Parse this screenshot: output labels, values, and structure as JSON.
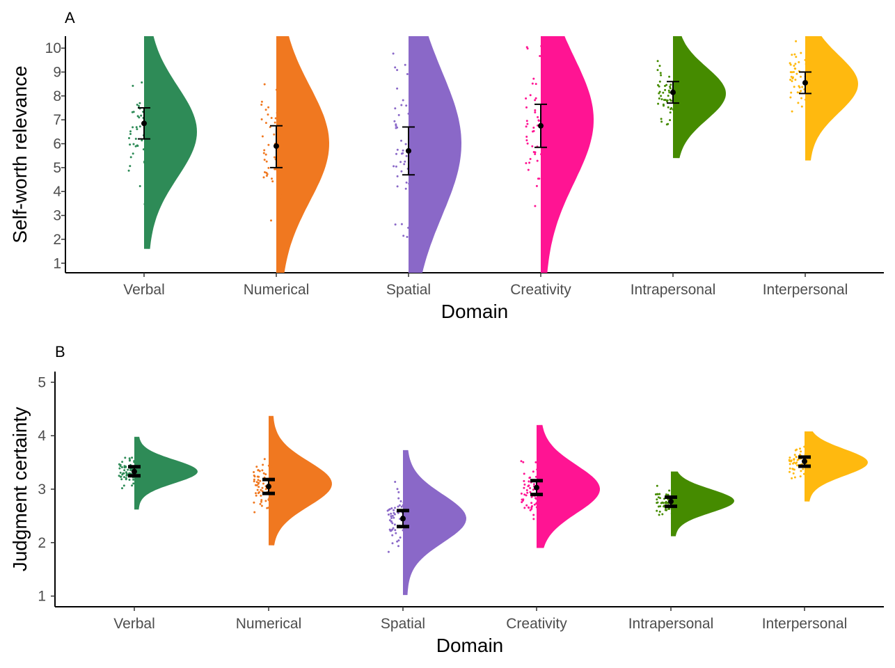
{
  "chart_data": [
    {
      "type": "raincloud",
      "panel_label": "A",
      "xlabel": "Domain",
      "ylabel": "Self-worth relevance",
      "ylim": [
        0.6,
        10.5
      ],
      "yticks": [
        1,
        2,
        3,
        4,
        5,
        6,
        7,
        8,
        9,
        10
      ],
      "categories": [
        "Verbal",
        "Numerical",
        "Spatial",
        "Creativity",
        "Intrapersonal",
        "Interpersonal"
      ],
      "colors": [
        "#2E8B57",
        "#F07820",
        "#8A68C8",
        "#FF1493",
        "#458B00",
        "#FFB90F"
      ],
      "series": [
        {
          "mean": 6.85,
          "ci": [
            6.2,
            7.5
          ],
          "range": [
            1.6,
            10.5
          ],
          "mode": 6.5,
          "spread": 1.9
        },
        {
          "mean": 5.9,
          "ci": [
            5.0,
            6.75
          ],
          "range": [
            0.6,
            10.5
          ],
          "mode": 6.0,
          "spread": 2.4
        },
        {
          "mean": 5.7,
          "ci": [
            4.7,
            6.7
          ],
          "range": [
            0.6,
            10.5
          ],
          "mode": 6.0,
          "spread": 3.0
        },
        {
          "mean": 6.75,
          "ci": [
            5.85,
            7.65
          ],
          "range": [
            0.6,
            10.5
          ],
          "mode": 7.0,
          "spread": 2.6
        },
        {
          "mean": 8.15,
          "ci": [
            7.7,
            8.6
          ],
          "range": [
            5.4,
            10.5
          ],
          "mode": 8.1,
          "spread": 1.1
        },
        {
          "mean": 8.55,
          "ci": [
            8.1,
            9.0
          ],
          "range": [
            5.3,
            10.5
          ],
          "mode": 8.5,
          "spread": 1.2
        }
      ]
    },
    {
      "type": "raincloud",
      "panel_label": "B",
      "xlabel": "Domain",
      "ylabel": "Judgment certainty",
      "ylim": [
        0.8,
        5.2
      ],
      "yticks": [
        1,
        2,
        3,
        4,
        5
      ],
      "categories": [
        "Verbal",
        "Numerical",
        "Spatial",
        "Creativity",
        "Intrapersonal",
        "Interpersonal"
      ],
      "colors": [
        "#2E8B57",
        "#F07820",
        "#8A68C8",
        "#FF1493",
        "#458B00",
        "#FFB90F"
      ],
      "series": [
        {
          "mean": 3.33,
          "ci": [
            3.25,
            3.42
          ],
          "range": [
            2.62,
            3.98
          ],
          "mode": 3.33,
          "spread": 0.22
        },
        {
          "mean": 3.05,
          "ci": [
            2.92,
            3.18
          ],
          "range": [
            1.95,
            4.37
          ],
          "mode": 3.1,
          "spread": 0.42
        },
        {
          "mean": 2.45,
          "ci": [
            2.3,
            2.6
          ],
          "range": [
            1.02,
            3.73
          ],
          "mode": 2.45,
          "spread": 0.45
        },
        {
          "mean": 3.03,
          "ci": [
            2.9,
            3.16
          ],
          "range": [
            1.9,
            4.2
          ],
          "mode": 3.0,
          "spread": 0.45
        },
        {
          "mean": 2.77,
          "ci": [
            2.68,
            2.85
          ],
          "range": [
            2.12,
            3.33
          ],
          "mode": 2.78,
          "spread": 0.22
        },
        {
          "mean": 3.52,
          "ci": [
            3.43,
            3.6
          ],
          "range": [
            2.77,
            4.08
          ],
          "mode": 3.5,
          "spread": 0.25
        }
      ]
    }
  ]
}
